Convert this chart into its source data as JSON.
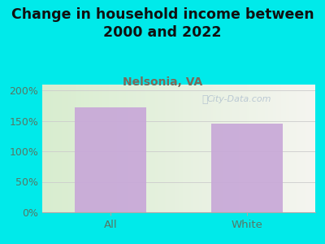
{
  "title": "Change in household income between\n2000 and 2022",
  "subtitle": "Nelsonia, VA",
  "categories": [
    "All",
    "White"
  ],
  "values": [
    172,
    145
  ],
  "bar_color": "#c8a8d8",
  "background_color": "#00eaea",
  "plot_bg_color_left": "#d8edcf",
  "plot_bg_color_right": "#f5f5f0",
  "title_fontsize": 12.5,
  "title_color": "#111111",
  "subtitle_fontsize": 10,
  "subtitle_color": "#7a6a5a",
  "tick_color": "#557766",
  "ylim": [
    0,
    210
  ],
  "yticks": [
    0,
    50,
    100,
    150,
    200
  ],
  "ytick_labels": [
    "0%",
    "50%",
    "100%",
    "150%",
    "200%"
  ],
  "watermark": "City-Data.com",
  "watermark_color": "#aabbcc"
}
